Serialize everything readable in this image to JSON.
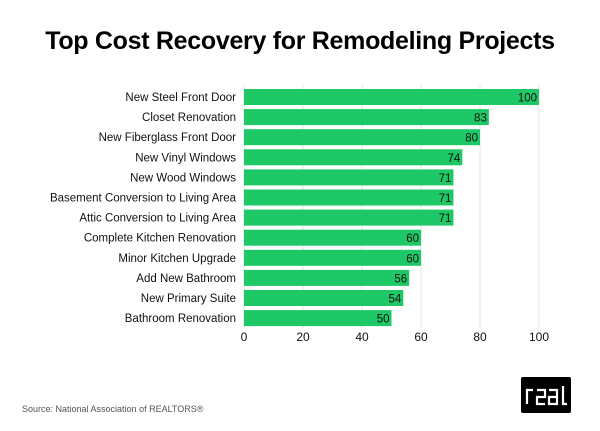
{
  "chart_data": {
    "type": "bar",
    "orientation": "horizontal",
    "title": "Top Cost Recovery for Remodeling Projects",
    "categories": [
      "New Steel Front Door",
      "Closet Renovation",
      "New Fiberglass Front Door",
      "New Vinyl Windows",
      "New Wood Windows",
      "Basement Conversion to Living Area",
      "Attic Conversion to Living Area",
      "Complete Kitchen Renovation",
      "Minor Kitchen Upgrade",
      "Add New Bathroom",
      "New Primary Suite",
      "Bathroom Renovation"
    ],
    "values": [
      100,
      83,
      80,
      74,
      71,
      71,
      71,
      60,
      60,
      56,
      54,
      50
    ],
    "xlim": [
      0,
      100
    ],
    "xticks": [
      0,
      20,
      40,
      60,
      80,
      100
    ],
    "xlabel": "",
    "ylabel": "",
    "grid": true,
    "bar_color": "#1ec866",
    "data_labels": true
  },
  "source": "Source: National Association of REALTORS®",
  "logo": {
    "text": "real",
    "icon": "real-logo"
  }
}
